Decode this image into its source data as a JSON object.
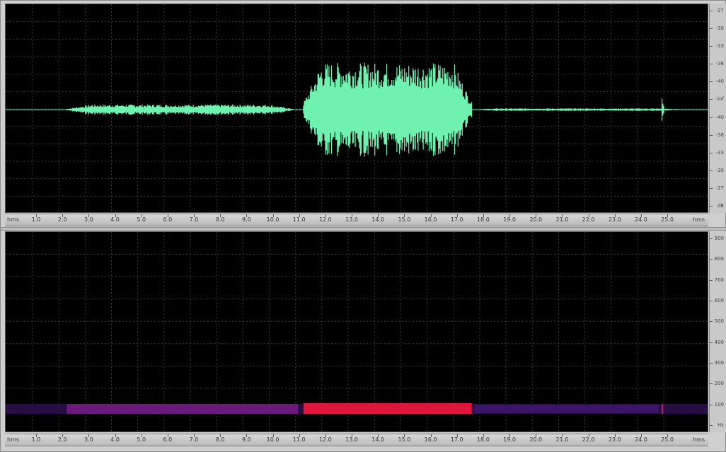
{
  "waveform": {
    "color": "#6ff2b0",
    "duration_s": 26.0,
    "amplitude_scale": [
      "-27",
      "-30",
      "-33",
      "-36",
      "-40",
      "-inf",
      "-40",
      "-36",
      "-33",
      "-30",
      "-27",
      "dB"
    ],
    "segments": [
      {
        "start": 2.3,
        "end": 10.9,
        "level": 0.05
      },
      {
        "start": 11.3,
        "end": 17.7,
        "level": 0.45
      },
      {
        "start": 17.8,
        "end": 25.7,
        "level": 0.012
      },
      {
        "start": 24.9,
        "end": 25.0,
        "level": 0.12
      }
    ]
  },
  "spectrogram": {
    "band_color_quiet": "#6a1a7a",
    "band_color_loud": "#e0153a",
    "frequency_scale": [
      "900",
      "800",
      "700",
      "600",
      "500",
      "400",
      "300",
      "200",
      "100",
      "Hz"
    ]
  },
  "time_ruler": {
    "start_label": "hms",
    "end_label": "hms",
    "ticks": [
      "1.0",
      "2.0",
      "3.0",
      "4.0",
      "5.0",
      "6.0",
      "7.0",
      "8.0",
      "9.0",
      "10.0",
      "11.0",
      "12.0",
      "13.0",
      "14.0",
      "15.0",
      "16.0",
      "17.0",
      "18.0",
      "19.0",
      "20.0",
      "21.0",
      "22.0",
      "23.0",
      "24.0",
      "25.0"
    ]
  }
}
